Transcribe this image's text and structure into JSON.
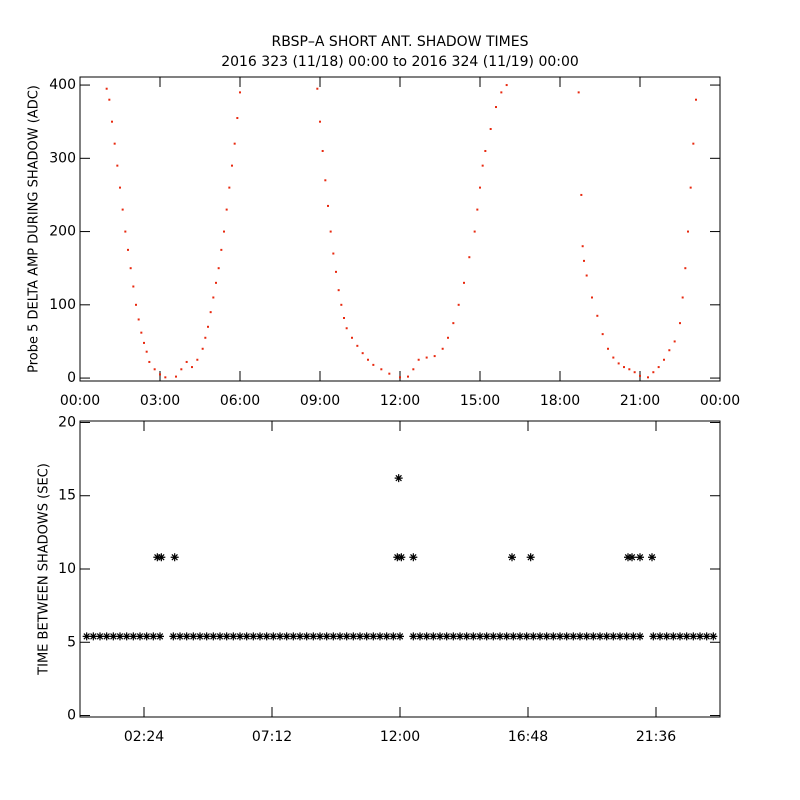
{
  "chart_data": [
    {
      "type": "scatter",
      "marker": "dot",
      "color": "#e8290f",
      "title": "RBSP–A SHORT ANT. SHADOW TIMES",
      "subtitle": "2016 323 (11/18) 00:00 to 2016 324 (11/19) 00:00",
      "ylabel": "Probe 5 DELTA AMP DURING SHADOW (ADC)",
      "xlim": [
        0,
        24
      ],
      "ylim": [
        -4,
        411
      ],
      "xticks": [
        {
          "value": 0,
          "label": "00:00"
        },
        {
          "value": 3,
          "label": "03:00"
        },
        {
          "value": 6,
          "label": "06:00"
        },
        {
          "value": 9,
          "label": "09:00"
        },
        {
          "value": 12,
          "label": "12:00"
        },
        {
          "value": 15,
          "label": "15:00"
        },
        {
          "value": 18,
          "label": "18:00"
        },
        {
          "value": 21,
          "label": "21:00"
        },
        {
          "value": 24,
          "label": "00:00"
        }
      ],
      "yticks": [
        0,
        100,
        200,
        300,
        400
      ],
      "x": [
        1.0,
        1.1,
        1.2,
        1.3,
        1.4,
        1.5,
        1.6,
        1.7,
        1.8,
        1.9,
        2.0,
        2.1,
        2.2,
        2.3,
        2.4,
        2.5,
        2.6,
        2.8,
        3.0,
        3.2,
        3.6,
        3.8,
        4.0,
        4.2,
        4.4,
        4.6,
        4.7,
        4.8,
        4.9,
        5.0,
        5.1,
        5.2,
        5.3,
        5.4,
        5.5,
        5.6,
        5.7,
        5.8,
        5.9,
        6.0,
        8.9,
        9.0,
        9.1,
        9.2,
        9.3,
        9.4,
        9.5,
        9.6,
        9.7,
        9.8,
        9.9,
        10.0,
        10.2,
        10.4,
        10.6,
        10.8,
        11.0,
        11.3,
        11.6,
        12.0,
        12.3,
        12.5,
        12.7,
        13.0,
        13.3,
        13.6,
        13.8,
        14.0,
        14.2,
        14.4,
        14.6,
        14.8,
        14.9,
        15.0,
        15.1,
        15.2,
        15.4,
        15.6,
        15.8,
        16.0,
        18.7,
        18.8,
        18.85,
        18.9,
        19.0,
        19.2,
        19.4,
        19.6,
        19.8,
        20.0,
        20.2,
        20.4,
        20.6,
        20.8,
        21.0,
        21.3,
        21.5,
        21.7,
        21.9,
        22.1,
        22.3,
        22.5,
        22.6,
        22.7,
        22.8,
        22.9,
        23.0,
        23.1
      ],
      "y": [
        395,
        380,
        350,
        320,
        290,
        260,
        230,
        200,
        175,
        150,
        125,
        100,
        80,
        62,
        48,
        36,
        22,
        12,
        5,
        1,
        2,
        12,
        22,
        15,
        25,
        40,
        55,
        70,
        90,
        110,
        130,
        150,
        175,
        200,
        230,
        260,
        290,
        320,
        355,
        390,
        395,
        350,
        310,
        270,
        235,
        200,
        170,
        145,
        120,
        100,
        82,
        68,
        55,
        44,
        34,
        25,
        18,
        12,
        6,
        1,
        2,
        12,
        25,
        28,
        30,
        40,
        55,
        75,
        100,
        130,
        165,
        200,
        230,
        260,
        290,
        310,
        340,
        370,
        390,
        400,
        390,
        250,
        180,
        160,
        140,
        110,
        85,
        60,
        40,
        28,
        20,
        15,
        12,
        8,
        3,
        1,
        8,
        15,
        25,
        38,
        50,
        75,
        110,
        150,
        200,
        260,
        320,
        380
      ]
    },
    {
      "type": "scatter",
      "marker": "asterisk",
      "color": "#000000",
      "ylabel": "TIME BETWEEN SHADOWS (SEC)",
      "xlim": [
        0,
        24
      ],
      "ylim": [
        -0.1,
        20.1
      ],
      "xticks": [
        {
          "value": 2.4,
          "label": "02:24"
        },
        {
          "value": 7.2,
          "label": "07:12"
        },
        {
          "value": 12,
          "label": "12:00"
        },
        {
          "value": 16.8,
          "label": "16:48"
        },
        {
          "value": 21.6,
          "label": "21:36"
        }
      ],
      "yticks": [
        0,
        5,
        10,
        15,
        20
      ],
      "x": [
        0.25,
        0.5,
        0.75,
        1.0,
        1.25,
        1.5,
        1.75,
        2.0,
        2.25,
        2.5,
        2.75,
        3.0,
        3.5,
        3.75,
        4.0,
        4.25,
        4.5,
        4.75,
        5.0,
        5.25,
        5.5,
        5.75,
        6.0,
        6.25,
        6.5,
        6.75,
        7.0,
        7.25,
        7.5,
        7.75,
        8.0,
        8.25,
        8.5,
        8.75,
        9.0,
        9.25,
        9.5,
        9.75,
        10.0,
        10.25,
        10.5,
        10.75,
        11.0,
        11.25,
        11.5,
        11.75,
        12.0,
        12.5,
        12.75,
        13.0,
        13.25,
        13.5,
        13.75,
        14.0,
        14.25,
        14.5,
        14.75,
        15.0,
        15.25,
        15.5,
        15.75,
        16.0,
        16.25,
        16.5,
        16.75,
        17.0,
        17.25,
        17.5,
        17.75,
        18.0,
        18.25,
        18.5,
        18.75,
        19.0,
        19.25,
        19.5,
        19.75,
        20.0,
        20.25,
        20.5,
        20.75,
        21.0,
        21.5,
        21.75,
        22.0,
        22.25,
        22.5,
        22.75,
        23.0,
        23.25,
        23.5,
        23.75,
        2.9,
        3.05,
        3.55,
        11.9,
        12.05,
        12.5,
        16.2,
        16.9,
        20.55,
        20.7,
        21.0,
        21.45,
        11.95
      ],
      "y": [
        5.4,
        5.4,
        5.4,
        5.4,
        5.4,
        5.4,
        5.4,
        5.4,
        5.4,
        5.4,
        5.4,
        5.4,
        5.4,
        5.4,
        5.4,
        5.4,
        5.4,
        5.4,
        5.4,
        5.4,
        5.4,
        5.4,
        5.4,
        5.4,
        5.4,
        5.4,
        5.4,
        5.4,
        5.4,
        5.4,
        5.4,
        5.4,
        5.4,
        5.4,
        5.4,
        5.4,
        5.4,
        5.4,
        5.4,
        5.4,
        5.4,
        5.4,
        5.4,
        5.4,
        5.4,
        5.4,
        5.4,
        5.4,
        5.4,
        5.4,
        5.4,
        5.4,
        5.4,
        5.4,
        5.4,
        5.4,
        5.4,
        5.4,
        5.4,
        5.4,
        5.4,
        5.4,
        5.4,
        5.4,
        5.4,
        5.4,
        5.4,
        5.4,
        5.4,
        5.4,
        5.4,
        5.4,
        5.4,
        5.4,
        5.4,
        5.4,
        5.4,
        5.4,
        5.4,
        5.4,
        5.4,
        5.4,
        5.4,
        5.4,
        5.4,
        5.4,
        5.4,
        5.4,
        5.4,
        5.4,
        5.4,
        5.4,
        10.8,
        10.8,
        10.8,
        10.8,
        10.8,
        10.8,
        10.8,
        10.8,
        10.8,
        10.8,
        10.8,
        10.8,
        16.2
      ]
    }
  ]
}
